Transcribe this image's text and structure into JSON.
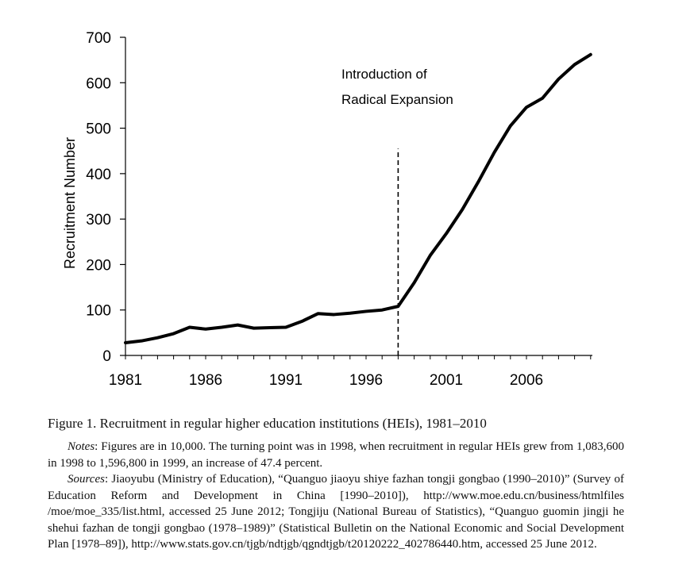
{
  "chart_data": {
    "type": "line",
    "title": "",
    "xlabel": "",
    "ylabel": "Recruitment  Number",
    "x": [
      1981,
      1982,
      1983,
      1984,
      1985,
      1986,
      1987,
      1988,
      1989,
      1990,
      1991,
      1992,
      1993,
      1994,
      1995,
      1996,
      1997,
      1998,
      1999,
      2000,
      2001,
      2002,
      2003,
      2004,
      2005,
      2006,
      2007,
      2008,
      2009,
      2010
    ],
    "values": [
      28,
      32,
      39,
      48,
      62,
      58,
      62,
      67,
      60,
      61,
      62,
      75,
      92,
      90,
      93,
      97,
      100,
      108,
      160,
      220,
      268,
      321,
      382,
      447,
      505,
      546,
      566,
      608,
      640,
      662
    ],
    "xlim": [
      1981,
      2010
    ],
    "ylim": [
      0,
      700
    ],
    "x_ticks": [
      "1981",
      "1986",
      "1991",
      "1996",
      "2001",
      "2006"
    ],
    "y_ticks": [
      "0",
      "100",
      "200",
      "300",
      "400",
      "500",
      "600",
      "700"
    ],
    "vline_x": 1998,
    "annotation": {
      "line1": "Introduction of",
      "line2": "Radical  Expansion"
    },
    "line_color": "#000000"
  },
  "caption": {
    "label": "Figure 1.",
    "text": " Recruitment in regular higher education institutions (HEIs), 1981–2010"
  },
  "notes": {
    "label": "Notes",
    "text": ": Figures are in 10,000. The turning point was in 1998, when recruitment in regular HEIs grew from 1,083,600 in 1998 to 1,596,800 in 1999, an increase of 47.4 percent."
  },
  "sources": {
    "label": "Sources",
    "text": ": Jiaoyubu (Ministry of Education), “Quanguo jiaoyu shiye fazhan tongji gongbao (1990–2010)” (Survey of Education Reform and Development in China [1990–2010]), http://www.moe.edu.cn/business/htmlfiles /moe/moe_335/list.html, accessed 25 June 2012; Tongjiju (National Bureau of Statistics), “Quanguo guomin jingji he shehui fazhan de tongji gongbao (1978–1989)” (Statistical Bulletin on the National Economic and Social Development Plan [1978–89]), http://www.stats.gov.cn/tjgb/ndtjgb/qgndtjgb/t20120222_402786440.htm, accessed 25 June 2012."
  }
}
